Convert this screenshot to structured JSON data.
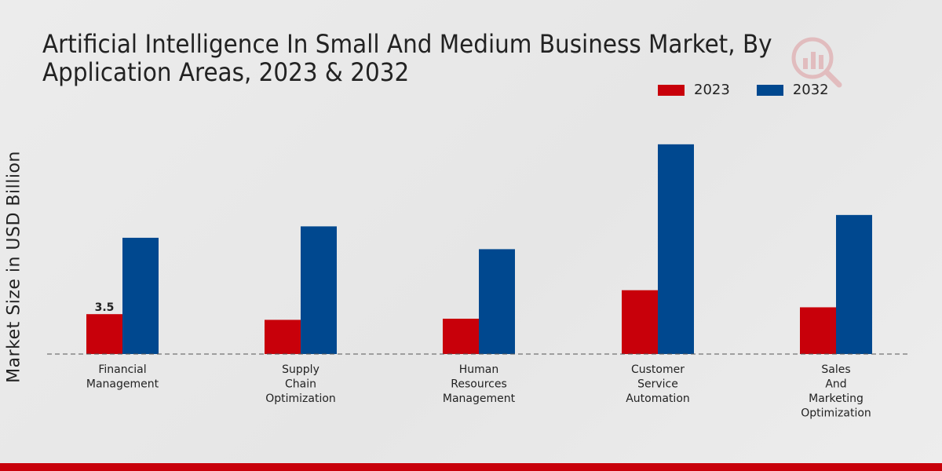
{
  "chart_data": {
    "type": "bar",
    "title": "Artificial Intelligence In Small And Medium Business Market, By Application Areas, 2023 & 2032",
    "xlabel": "",
    "ylabel": "Market Size in USD Billion",
    "categories": [
      "Financial\nManagement",
      "Supply\nChain\nOptimization",
      "Human\nResources\nManagement",
      "Customer\nService\nAutomation",
      "Sales\nAnd\nMarketing\nOptimization"
    ],
    "series": [
      {
        "name": "2023",
        "color": "#c8000a",
        "values": [
          3.5,
          3.0,
          3.1,
          5.6,
          4.1
        ]
      },
      {
        "name": "2032",
        "color": "#00488f",
        "values": [
          10.2,
          11.2,
          9.2,
          18.4,
          12.2
        ]
      }
    ],
    "data_labels": [
      {
        "series": 0,
        "index": 0,
        "text": "3.5"
      }
    ],
    "ylim": [
      0,
      25
    ],
    "grid": false,
    "legend": "top-right"
  }
}
